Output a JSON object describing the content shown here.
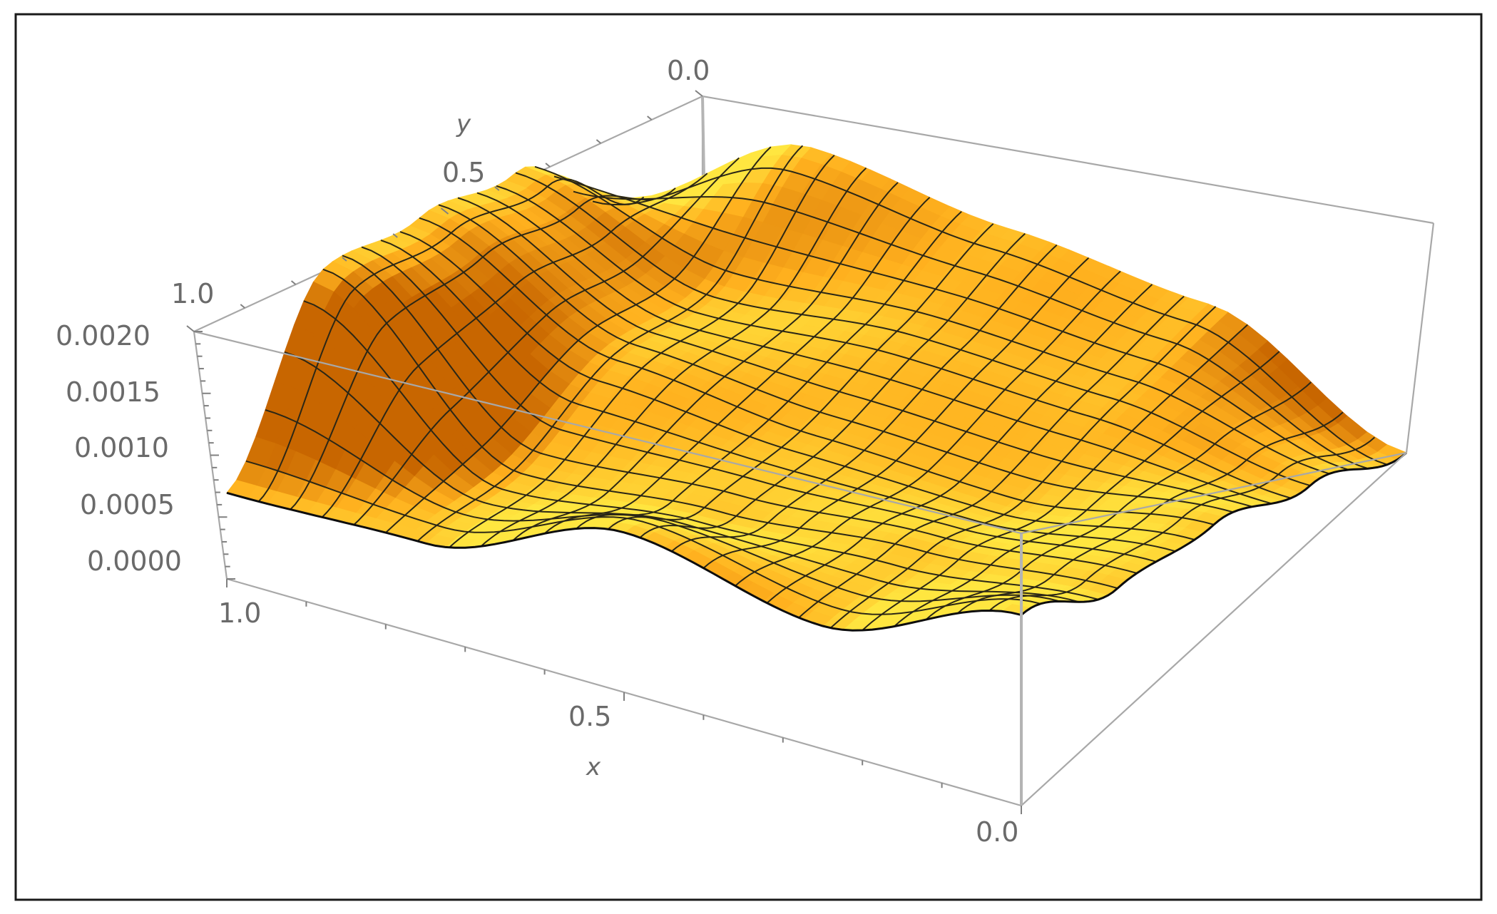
{
  "chart_data": {
    "type": "surface",
    "title": "",
    "xlabel": "x",
    "ylabel": "y",
    "zlabel": "",
    "xlim": [
      0.0,
      1.0
    ],
    "ylim": [
      0.0,
      1.0
    ],
    "zlim": [
      0.0,
      0.002
    ],
    "x_ticks": [
      "1.0",
      "0.5",
      "0.0"
    ],
    "y_ticks": [
      "1.0",
      "0.5",
      "0.0"
    ],
    "z_ticks": [
      "0.0020",
      "0.0015",
      "0.0010",
      "0.0005",
      "0.0000"
    ],
    "mesh": {
      "x_lines": 25,
      "y_lines": 20
    },
    "surface_samples": {
      "x": [
        0.0,
        0.25,
        0.5,
        0.75,
        1.0
      ],
      "y": [
        0.0,
        0.25,
        0.5,
        0.75,
        1.0
      ],
      "z": [
        [
          0.0,
          0.00045,
          0.00085,
          0.00105,
          0.00155
        ],
        [
          0.00075,
          0.0007,
          0.0006,
          0.0009,
          0.001
        ],
        [
          0.0009,
          0.00075,
          0.00065,
          0.00075,
          0.0013
        ],
        [
          0.0011,
          0.0006,
          0.0008,
          0.0006,
          0.00075
        ],
        [
          0.00025,
          0.00115,
          0.0015,
          0.0018,
          0.0007
        ]
      ]
    },
    "colors": {
      "surface_light": "#ffe640",
      "surface_mid": "#ffb01e",
      "surface_dark": "#c86600",
      "mesh": "#2b2716",
      "box": "#a8a8a8"
    },
    "grid": false,
    "legend": "none"
  }
}
